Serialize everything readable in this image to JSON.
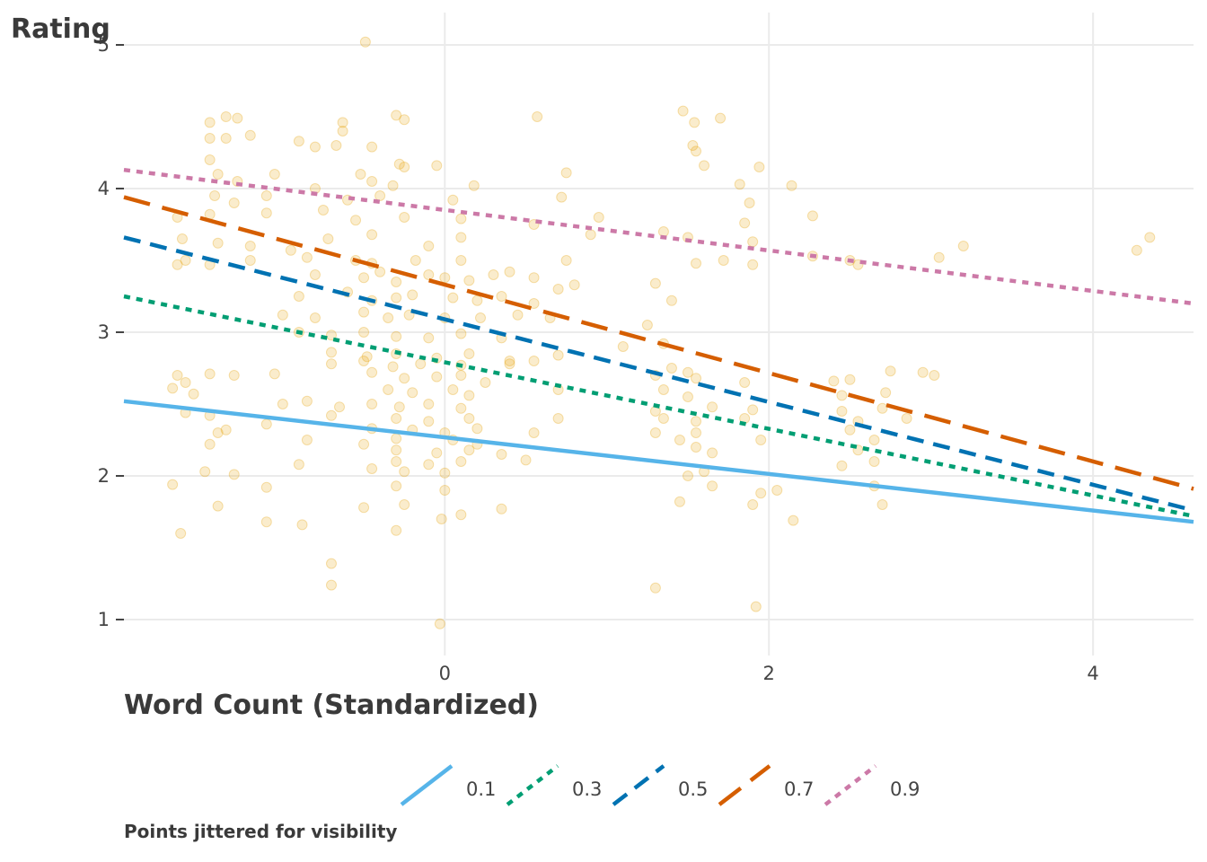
{
  "chart_data": {
    "type": "scatter",
    "ylabel": "Rating",
    "xlabel": "Word Count (Standardized)",
    "caption": "Points jittered for visibility",
    "xlim": [
      -1.98,
      4.62
    ],
    "ylim": [
      0.8,
      5.1
    ],
    "xticks": [
      0,
      2,
      4
    ],
    "yticks": [
      1,
      2,
      3,
      4,
      5
    ],
    "grid": true,
    "legend_position": "bottom",
    "points_color": "#e69f00",
    "quantile_lines": [
      {
        "name": "0.1",
        "color": "#56b4e9",
        "dash": "solid",
        "x": [
          -1.98,
          4.62
        ],
        "y": [
          2.52,
          1.68
        ]
      },
      {
        "name": "0.3",
        "color": "#009e73",
        "dash": "dotted",
        "x": [
          -1.98,
          4.62
        ],
        "y": [
          3.25,
          1.72
        ]
      },
      {
        "name": "0.5",
        "color": "#0072b2",
        "dash": "dashed",
        "x": [
          -1.98,
          4.62
        ],
        "y": [
          3.66,
          1.76
        ]
      },
      {
        "name": "0.7",
        "color": "#d55e00",
        "dash": "longdash",
        "x": [
          -1.98,
          4.62
        ],
        "y": [
          3.94,
          1.91
        ]
      },
      {
        "name": "0.9",
        "color": "#cc79a7",
        "dash": "dotted",
        "x": [
          -1.98,
          4.62
        ],
        "y": [
          4.13,
          3.2
        ]
      }
    ],
    "points": [
      [
        -0.49,
        5.02
      ],
      [
        -1.45,
        4.46
      ],
      [
        -1.35,
        4.5
      ],
      [
        -1.28,
        4.49
      ],
      [
        -0.63,
        4.46
      ],
      [
        -0.63,
        4.4
      ],
      [
        -0.3,
        4.51
      ],
      [
        -0.25,
        4.48
      ],
      [
        0.57,
        4.5
      ],
      [
        1.47,
        4.54
      ],
      [
        1.54,
        4.46
      ],
      [
        1.7,
        4.49
      ],
      [
        -1.45,
        4.35
      ],
      [
        -1.35,
        4.35
      ],
      [
        -1.2,
        4.37
      ],
      [
        -0.9,
        4.33
      ],
      [
        -0.8,
        4.29
      ],
      [
        -0.67,
        4.3
      ],
      [
        -0.45,
        4.29
      ],
      [
        -0.05,
        4.16
      ],
      [
        -0.28,
        4.17
      ],
      [
        -0.25,
        4.15
      ],
      [
        1.53,
        4.3
      ],
      [
        1.55,
        4.26
      ],
      [
        1.6,
        4.16
      ],
      [
        1.94,
        4.15
      ],
      [
        -1.45,
        4.2
      ],
      [
        -1.4,
        4.1
      ],
      [
        -1.28,
        4.05
      ],
      [
        -1.05,
        4.1
      ],
      [
        -0.8,
        4.0
      ],
      [
        -0.52,
        4.1
      ],
      [
        -0.45,
        4.05
      ],
      [
        -0.32,
        4.02
      ],
      [
        0.18,
        4.02
      ],
      [
        0.75,
        4.11
      ],
      [
        1.82,
        4.03
      ],
      [
        2.14,
        4.02
      ],
      [
        -1.42,
        3.95
      ],
      [
        -1.3,
        3.9
      ],
      [
        -1.1,
        3.95
      ],
      [
        -0.6,
        3.92
      ],
      [
        -0.4,
        3.95
      ],
      [
        0.05,
        3.92
      ],
      [
        0.72,
        3.94
      ],
      [
        1.88,
        3.9
      ],
      [
        -1.65,
        3.8
      ],
      [
        -1.45,
        3.82
      ],
      [
        -1.1,
        3.83
      ],
      [
        -0.75,
        3.85
      ],
      [
        -0.55,
        3.78
      ],
      [
        -0.25,
        3.8
      ],
      [
        0.1,
        3.79
      ],
      [
        0.55,
        3.75
      ],
      [
        0.95,
        3.8
      ],
      [
        1.35,
        3.7
      ],
      [
        1.85,
        3.76
      ],
      [
        2.27,
        3.81
      ],
      [
        -1.62,
        3.65
      ],
      [
        -1.4,
        3.62
      ],
      [
        -1.2,
        3.6
      ],
      [
        -0.95,
        3.57
      ],
      [
        -0.72,
        3.65
      ],
      [
        -0.45,
        3.68
      ],
      [
        -0.1,
        3.6
      ],
      [
        0.1,
        3.66
      ],
      [
        0.9,
        3.68
      ],
      [
        1.5,
        3.66
      ],
      [
        1.9,
        3.63
      ],
      [
        2.5,
        3.5
      ],
      [
        3.2,
        3.6
      ],
      [
        4.27,
        3.57
      ],
      [
        4.35,
        3.66
      ],
      [
        -1.6,
        3.5
      ],
      [
        -1.45,
        3.47
      ],
      [
        -1.2,
        3.5
      ],
      [
        -0.85,
        3.52
      ],
      [
        -0.55,
        3.5
      ],
      [
        -0.45,
        3.48
      ],
      [
        -0.18,
        3.5
      ],
      [
        0.1,
        3.5
      ],
      [
        0.75,
        3.5
      ],
      [
        1.55,
        3.48
      ],
      [
        1.72,
        3.5
      ],
      [
        1.9,
        3.47
      ],
      [
        2.27,
        3.53
      ],
      [
        2.55,
        3.47
      ],
      [
        3.05,
        3.52
      ],
      [
        -1.65,
        3.47
      ],
      [
        -0.8,
        3.4
      ],
      [
        -0.5,
        3.38
      ],
      [
        -0.4,
        3.42
      ],
      [
        -0.3,
        3.35
      ],
      [
        -0.1,
        3.4
      ],
      [
        0.0,
        3.38
      ],
      [
        0.15,
        3.36
      ],
      [
        0.3,
        3.4
      ],
      [
        0.4,
        3.42
      ],
      [
        0.55,
        3.38
      ],
      [
        -0.9,
        3.25
      ],
      [
        -0.6,
        3.28
      ],
      [
        -0.45,
        3.22
      ],
      [
        -0.3,
        3.24
      ],
      [
        -0.2,
        3.26
      ],
      [
        0.05,
        3.24
      ],
      [
        0.2,
        3.22
      ],
      [
        0.35,
        3.25
      ],
      [
        0.55,
        3.2
      ],
      [
        0.7,
        3.3
      ],
      [
        0.8,
        3.33
      ],
      [
        1.3,
        3.34
      ],
      [
        1.4,
        3.22
      ],
      [
        -1.0,
        3.12
      ],
      [
        -0.8,
        3.1
      ],
      [
        -0.5,
        3.14
      ],
      [
        -0.35,
        3.1
      ],
      [
        -0.22,
        3.12
      ],
      [
        0.0,
        3.1
      ],
      [
        0.22,
        3.1
      ],
      [
        0.45,
        3.12
      ],
      [
        0.65,
        3.1
      ],
      [
        1.25,
        3.05
      ],
      [
        -0.9,
        3.0
      ],
      [
        -0.7,
        2.98
      ],
      [
        -0.5,
        3.0
      ],
      [
        -0.3,
        2.97
      ],
      [
        -0.1,
        2.96
      ],
      [
        0.1,
        2.99
      ],
      [
        0.35,
        2.96
      ],
      [
        1.1,
        2.9
      ],
      [
        1.35,
        2.92
      ],
      [
        -0.7,
        2.86
      ],
      [
        -0.48,
        2.83
      ],
      [
        -0.3,
        2.85
      ],
      [
        -0.05,
        2.82
      ],
      [
        0.15,
        2.85
      ],
      [
        0.4,
        2.8
      ],
      [
        0.7,
        2.84
      ],
      [
        -0.7,
        2.78
      ],
      [
        -0.5,
        2.8
      ],
      [
        -0.32,
        2.76
      ],
      [
        -0.15,
        2.78
      ],
      [
        0.1,
        2.77
      ],
      [
        0.4,
        2.78
      ],
      [
        0.55,
        2.8
      ],
      [
        1.4,
        2.75
      ],
      [
        1.5,
        2.72
      ],
      [
        -1.65,
        2.7
      ],
      [
        -1.6,
        2.65
      ],
      [
        -1.45,
        2.71
      ],
      [
        -1.3,
        2.7
      ],
      [
        -1.05,
        2.71
      ],
      [
        -0.45,
        2.72
      ],
      [
        -0.25,
        2.68
      ],
      [
        -0.05,
        2.69
      ],
      [
        0.1,
        2.7
      ],
      [
        0.25,
        2.65
      ],
      [
        1.3,
        2.7
      ],
      [
        1.55,
        2.68
      ],
      [
        1.85,
        2.65
      ],
      [
        2.4,
        2.66
      ],
      [
        2.5,
        2.67
      ],
      [
        2.75,
        2.73
      ],
      [
        2.95,
        2.72
      ],
      [
        3.02,
        2.7
      ],
      [
        -1.68,
        2.61
      ],
      [
        -1.55,
        2.57
      ],
      [
        -0.35,
        2.6
      ],
      [
        -0.2,
        2.58
      ],
      [
        0.05,
        2.6
      ],
      [
        0.15,
        2.56
      ],
      [
        0.7,
        2.6
      ],
      [
        1.35,
        2.6
      ],
      [
        1.5,
        2.55
      ],
      [
        2.45,
        2.56
      ],
      [
        2.72,
        2.58
      ],
      [
        -1.0,
        2.5
      ],
      [
        -0.85,
        2.52
      ],
      [
        -0.65,
        2.48
      ],
      [
        -0.45,
        2.5
      ],
      [
        -0.28,
        2.48
      ],
      [
        -0.1,
        2.5
      ],
      [
        0.1,
        2.47
      ],
      [
        1.3,
        2.45
      ],
      [
        1.65,
        2.48
      ],
      [
        1.9,
        2.46
      ],
      [
        2.45,
        2.45
      ],
      [
        2.7,
        2.47
      ],
      [
        -1.6,
        2.44
      ],
      [
        -1.45,
        2.42
      ],
      [
        -0.7,
        2.42
      ],
      [
        -0.3,
        2.4
      ],
      [
        -0.1,
        2.38
      ],
      [
        0.15,
        2.4
      ],
      [
        0.7,
        2.4
      ],
      [
        1.35,
        2.4
      ],
      [
        1.55,
        2.38
      ],
      [
        1.85,
        2.4
      ],
      [
        2.55,
        2.38
      ],
      [
        2.85,
        2.4
      ],
      [
        -1.1,
        2.36
      ],
      [
        -0.45,
        2.33
      ],
      [
        -0.2,
        2.32
      ],
      [
        0.0,
        2.3
      ],
      [
        0.2,
        2.33
      ],
      [
        1.3,
        2.3
      ],
      [
        1.55,
        2.3
      ],
      [
        2.5,
        2.32
      ],
      [
        -1.4,
        2.3
      ],
      [
        -1.35,
        2.32
      ],
      [
        -0.85,
        2.25
      ],
      [
        -0.5,
        2.22
      ],
      [
        -0.3,
        2.26
      ],
      [
        0.05,
        2.25
      ],
      [
        0.2,
        2.22
      ],
      [
        0.55,
        2.3
      ],
      [
        1.45,
        2.25
      ],
      [
        1.55,
        2.2
      ],
      [
        1.95,
        2.25
      ],
      [
        2.65,
        2.25
      ],
      [
        -1.45,
        2.22
      ],
      [
        -0.3,
        2.18
      ],
      [
        -0.05,
        2.16
      ],
      [
        0.15,
        2.18
      ],
      [
        0.35,
        2.15
      ],
      [
        1.65,
        2.16
      ],
      [
        2.55,
        2.18
      ],
      [
        -0.9,
        2.08
      ],
      [
        -0.3,
        2.1
      ],
      [
        -0.1,
        2.08
      ],
      [
        0.1,
        2.1
      ],
      [
        0.5,
        2.11
      ],
      [
        2.45,
        2.07
      ],
      [
        2.65,
        2.1
      ],
      [
        -1.48,
        2.03
      ],
      [
        -1.3,
        2.01
      ],
      [
        -0.45,
        2.05
      ],
      [
        -0.25,
        2.03
      ],
      [
        0.0,
        2.02
      ],
      [
        1.5,
        2.0
      ],
      [
        1.6,
        2.03
      ],
      [
        -1.68,
        1.94
      ],
      [
        -1.1,
        1.92
      ],
      [
        -0.3,
        1.93
      ],
      [
        0.0,
        1.9
      ],
      [
        1.65,
        1.93
      ],
      [
        2.05,
        1.9
      ],
      [
        2.65,
        1.93
      ],
      [
        -1.4,
        1.79
      ],
      [
        -0.5,
        1.78
      ],
      [
        -0.25,
        1.8
      ],
      [
        0.1,
        1.73
      ],
      [
        0.35,
        1.77
      ],
      [
        1.45,
        1.82
      ],
      [
        1.9,
        1.8
      ],
      [
        1.95,
        1.88
      ],
      [
        2.7,
        1.8
      ],
      [
        -1.63,
        1.6
      ],
      [
        -1.1,
        1.68
      ],
      [
        -0.88,
        1.66
      ],
      [
        -0.3,
        1.62
      ],
      [
        -0.02,
        1.7
      ],
      [
        2.15,
        1.69
      ],
      [
        -0.7,
        1.39
      ],
      [
        -0.7,
        1.24
      ],
      [
        1.3,
        1.22
      ],
      [
        1.92,
        1.09
      ],
      [
        -0.03,
        0.97
      ]
    ]
  }
}
